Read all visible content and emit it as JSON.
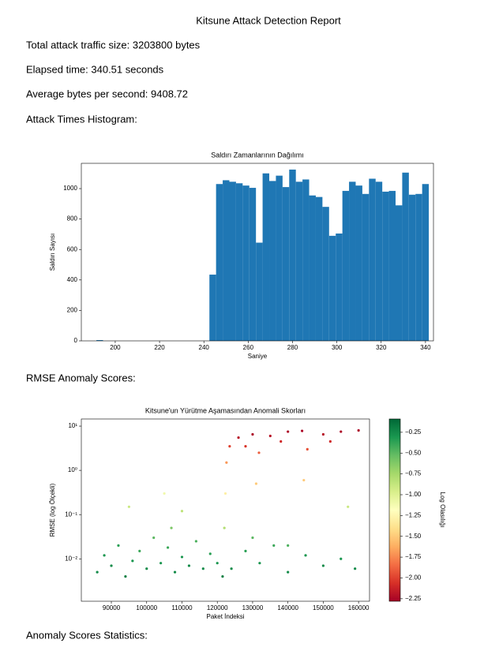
{
  "document": {
    "title": "Kitsune Attack Detection Report",
    "lines": [
      "Total attack traffic size: 3203800 bytes",
      "Elapsed time: 340.51 seconds",
      "Average bytes per second: 9408.72",
      "Attack Times Histogram:"
    ],
    "section_rmse": "RMSE Anomaly Scores:",
    "section_stats": "Anomaly Scores Statistics:"
  },
  "chart_data": [
    {
      "type": "histogram",
      "title": "Saldırı Zamanlarının Dağılımı",
      "x_label": "Saniye",
      "y_label": "Saldırı Sayısı",
      "color": "#1f77b4",
      "bins": [
        191.5,
        194.5,
        197.5,
        200.5,
        203.5,
        206.5,
        209.5,
        212.5,
        215.5,
        218.5,
        221.5,
        224.5,
        227.5,
        230.5,
        233.5,
        236.5,
        239.5,
        242.5,
        245.5,
        248.5,
        251.5,
        254.5,
        257.5,
        260.5,
        263.5,
        266.5,
        269.5,
        272.5,
        275.5,
        278.5,
        281.5,
        284.5,
        287.5,
        290.5,
        293.5,
        296.5,
        299.5,
        302.5,
        305.5,
        308.5,
        311.5,
        314.5,
        317.5,
        320.5,
        323.5,
        326.5,
        329.5,
        332.5,
        335.5,
        338.5,
        341.5
      ],
      "values": [
        5,
        0,
        0,
        0,
        0,
        0,
        0,
        0,
        0,
        0,
        0,
        0,
        0,
        0,
        0,
        0,
        0,
        435,
        1030,
        1055,
        1045,
        1035,
        1020,
        1005,
        645,
        1100,
        1050,
        1085,
        1010,
        1125,
        1045,
        1060,
        955,
        945,
        880,
        690,
        705,
        985,
        1045,
        1020,
        965,
        1065,
        1045,
        980,
        985,
        890,
        1105,
        960,
        965,
        1030
      ],
      "xlim": [
        184.7,
        343.6
      ],
      "xticks": [
        200,
        220,
        240,
        260,
        280,
        300,
        320,
        340
      ],
      "ylim": [
        0,
        1166
      ],
      "yticks": [
        0,
        200,
        400,
        600,
        800,
        1000
      ]
    },
    {
      "type": "scatter",
      "title": "Kitsune'un Yürütme Aşamasından Anomali Skorları",
      "x_label": "Paket İndeksi",
      "y_label": "RMSE (log Ölçekli)",
      "log_y": true,
      "colormap": "RdYlGn",
      "colorbar_label": "Log Olasılığı",
      "clim": [
        -2.28,
        -0.09
      ],
      "cticks": [
        {
          "value": -0.25,
          "label": "−0.25"
        },
        {
          "value": -0.5,
          "label": "−0.50"
        },
        {
          "value": -0.75,
          "label": "−0.75"
        },
        {
          "value": -1.0,
          "label": "−1.00"
        },
        {
          "value": -1.25,
          "label": "−1.25"
        },
        {
          "value": -1.5,
          "label": "−1.50"
        },
        {
          "value": -1.75,
          "label": "−1.75"
        },
        {
          "value": -2.0,
          "label": "−2.00"
        },
        {
          "value": -2.25,
          "label": "−2.25"
        }
      ],
      "x": [
        86000,
        88000,
        90000,
        92000,
        94000,
        96000,
        98000,
        100000,
        102000,
        104000,
        106000,
        107000,
        108000,
        110000,
        112000,
        114000,
        116000,
        118000,
        120000,
        121500,
        95000,
        105000,
        110000,
        122000,
        122300,
        122600,
        123500,
        126000,
        130000,
        131000,
        131800,
        135000,
        140000,
        144000,
        144500,
        145500,
        150000,
        155000,
        160000,
        128000,
        138000,
        152000,
        124000,
        128000,
        132000,
        136000,
        140000,
        145000,
        150000,
        155000,
        159000,
        130000,
        140000,
        157000
      ],
      "y": [
        0.005,
        0.012,
        0.007,
        0.02,
        0.004,
        0.009,
        0.015,
        0.006,
        0.03,
        0.008,
        0.018,
        0.05,
        0.005,
        0.011,
        0.007,
        0.025,
        0.006,
        0.013,
        0.008,
        0.004,
        0.15,
        0.3,
        0.12,
        0.05,
        0.3,
        1.5,
        3.5,
        5.5,
        6.5,
        0.5,
        2.5,
        6,
        7.5,
        7.8,
        0.6,
        3,
        6.5,
        7.5,
        8,
        3.5,
        4.5,
        4.5,
        0.006,
        0.015,
        0.008,
        0.02,
        0.005,
        0.012,
        0.007,
        0.01,
        0.006,
        0.03,
        0.02,
        0.15
      ],
      "c": [
        -0.25,
        -0.3,
        -0.25,
        -0.35,
        -0.2,
        -0.3,
        -0.4,
        -0.25,
        -0.5,
        -0.3,
        -0.4,
        -0.6,
        -0.25,
        -0.3,
        -0.25,
        -0.45,
        -0.25,
        -0.35,
        -0.3,
        -0.2,
        -0.9,
        -1.1,
        -0.85,
        -0.8,
        -1.3,
        -1.7,
        -2.0,
        -2.2,
        -2.25,
        -1.5,
        -1.9,
        -2.2,
        -2.25,
        -2.25,
        -1.5,
        -1.95,
        -2.2,
        -2.25,
        -2.25,
        -2.05,
        -2.1,
        -2.1,
        -0.25,
        -0.35,
        -0.3,
        -0.4,
        -0.25,
        -0.3,
        -0.25,
        -0.3,
        -0.25,
        -0.5,
        -0.45,
        -0.9
      ],
      "xlim": [
        81500,
        163100
      ],
      "xticks": [
        90000,
        100000,
        110000,
        120000,
        130000,
        140000,
        150000,
        160000
      ],
      "ylim": [
        0.0011,
        14.5
      ],
      "yticks": [
        {
          "value": 0.01,
          "label": "10⁻²"
        },
        {
          "value": 0.1,
          "label": "10⁻¹"
        },
        {
          "value": 1,
          "label": "10⁰"
        },
        {
          "value": 10,
          "label": "10¹"
        }
      ]
    }
  ]
}
